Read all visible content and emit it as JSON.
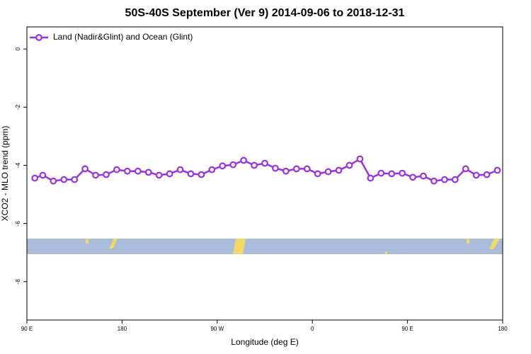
{
  "chart_data": {
    "type": "line",
    "title": "50S-40S September (Ver 9)   2014-09-06 to 2018-12-31",
    "x_label": "Longitude (deg E)",
    "y_label": "XCO2 - MLO trend (ppm)",
    "xlim": [
      90,
      540
    ],
    "xticks": [
      {
        "value": 90,
        "label": "90 E"
      },
      {
        "value": 180,
        "label": "180"
      },
      {
        "value": 270,
        "label": "90 W"
      },
      {
        "value": 360,
        "label": "0"
      },
      {
        "value": 450,
        "label": "90 E"
      },
      {
        "value": 540,
        "label": "180"
      }
    ],
    "ylim": [
      -9.32,
      0.76
    ],
    "yticks": [
      0,
      -2,
      -4,
      -6,
      -8
    ],
    "legend": "top-left",
    "series": [
      {
        "name": "Land (Nadir&Glint) and Ocean (Glint)",
        "color": "#9b30e0",
        "x": [
          97.5,
          105,
          115,
          125,
          135,
          145,
          155,
          165,
          175,
          185,
          195,
          205,
          215,
          225,
          235,
          245,
          255,
          265,
          275,
          285,
          295,
          305,
          315,
          325,
          335,
          345,
          355,
          365,
          375,
          385,
          395,
          405,
          415,
          425,
          435,
          445,
          455,
          465,
          475,
          485,
          495,
          505,
          515,
          525,
          535
        ],
        "values": [
          -4.44,
          -4.34,
          -4.54,
          -4.49,
          -4.49,
          -4.12,
          -4.34,
          -4.32,
          -4.15,
          -4.2,
          -4.2,
          -4.24,
          -4.34,
          -4.29,
          -4.15,
          -4.29,
          -4.32,
          -4.15,
          -4.02,
          -3.98,
          -3.83,
          -4.0,
          -3.93,
          -4.1,
          -4.2,
          -4.12,
          -4.12,
          -4.29,
          -4.22,
          -4.17,
          -4.0,
          -3.78,
          -4.44,
          -4.27,
          -4.29,
          -4.27,
          -4.41,
          -4.37,
          -4.54,
          -4.49,
          -4.49,
          -4.12,
          -4.34,
          -4.32,
          -4.17
        ]
      }
    ]
  }
}
